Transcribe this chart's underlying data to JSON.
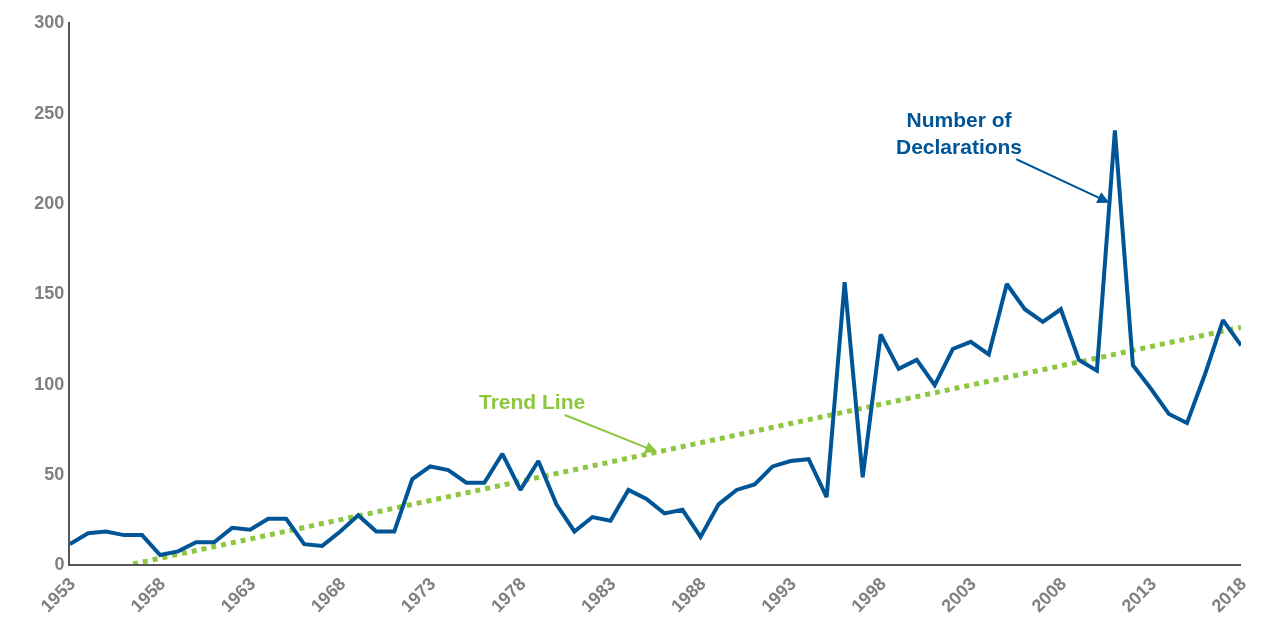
{
  "chart_data": {
    "type": "line",
    "x": [
      1953,
      1954,
      1955,
      1956,
      1957,
      1958,
      1959,
      1960,
      1961,
      1962,
      1963,
      1964,
      1965,
      1966,
      1967,
      1968,
      1969,
      1970,
      1971,
      1972,
      1973,
      1974,
      1975,
      1976,
      1977,
      1978,
      1979,
      1980,
      1981,
      1982,
      1983,
      1984,
      1985,
      1986,
      1987,
      1988,
      1989,
      1990,
      1991,
      1992,
      1993,
      1994,
      1995,
      1996,
      1997,
      1998,
      1999,
      2000,
      2001,
      2002,
      2003,
      2004,
      2005,
      2006,
      2007,
      2008,
      2009,
      2010,
      2011,
      2012,
      2013,
      2014,
      2015,
      2016,
      2017,
      2018
    ],
    "series": [
      {
        "color": "#005596",
        "values": [
          11,
          17,
          18,
          16,
          16,
          5,
          7,
          12,
          12,
          20,
          19,
          25,
          25,
          11,
          10,
          18,
          27,
          18,
          18,
          47,
          54,
          52,
          45,
          45,
          61,
          41,
          57,
          33,
          18,
          26,
          24,
          41,
          36,
          28,
          30,
          15,
          33,
          41,
          44,
          54,
          57,
          58,
          37,
          156,
          48,
          127,
          108,
          113,
          99,
          119,
          123,
          116,
          155,
          141,
          134,
          141,
          113,
          107,
          240,
          110,
          97,
          83,
          78,
          105,
          135,
          121
        ],
        "line_style": "solid"
      },
      {
        "type": "line",
        "color": "#8dc63f",
        "x": [
          1956.5,
          2018
        ],
        "values": [
          0,
          131
        ],
        "line_style": "dotted"
      }
    ],
    "annotations": [
      {
        "text": "Number of Declarations",
        "x": 2010.7,
        "y": 200
      },
      {
        "text": "Trend Line",
        "x": 1985.6,
        "y": 62
      }
    ],
    "xlim": [
      1953,
      2018
    ],
    "xticks": [
      1953,
      1958,
      1963,
      1968,
      1973,
      1978,
      1983,
      1988,
      1993,
      1998,
      2003,
      2008,
      2013,
      2018
    ],
    "ylim": [
      0,
      300
    ],
    "yticks": [
      0,
      50,
      100,
      150,
      200,
      250,
      300
    ],
    "marker": "none"
  }
}
